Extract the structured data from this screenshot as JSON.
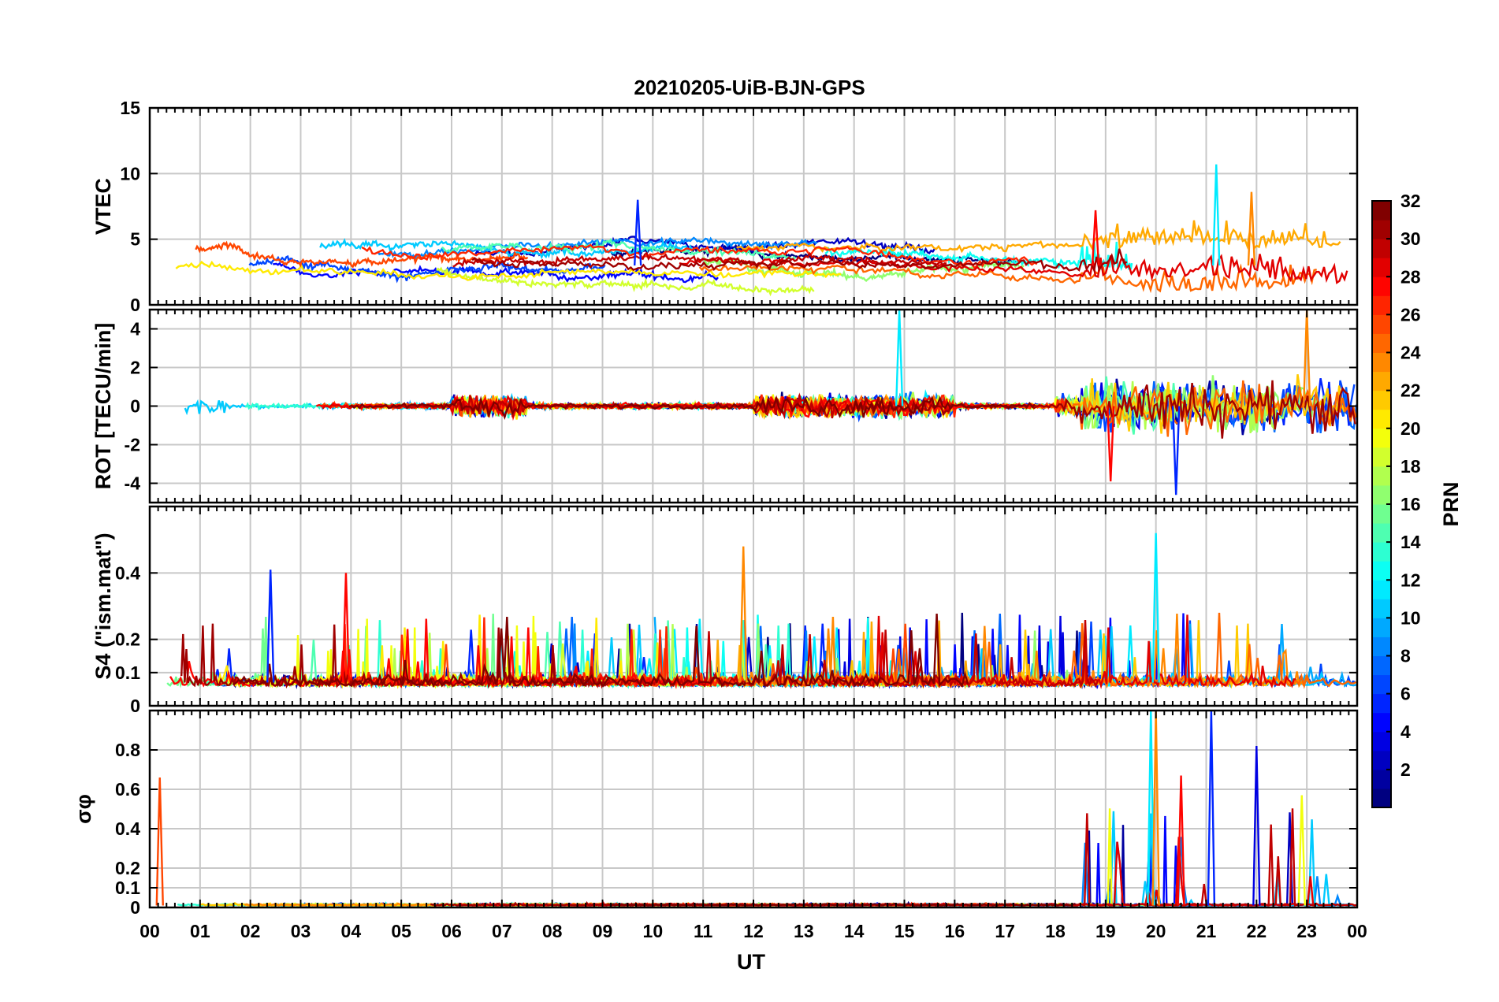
{
  "title": "20210205-UiB-BJN-GPS",
  "xlabel": "UT",
  "x_tick_labels": [
    "00",
    "01",
    "02",
    "03",
    "04",
    "05",
    "06",
    "07",
    "08",
    "09",
    "10",
    "11",
    "12",
    "13",
    "14",
    "15",
    "16",
    "17",
    "18",
    "19",
    "20",
    "21",
    "22",
    "23",
    "00"
  ],
  "colorbar": {
    "label": "PRN",
    "range": [
      1,
      32
    ],
    "ticks": [
      "2",
      "4",
      "6",
      "8",
      "10",
      "12",
      "14",
      "16",
      "18",
      "20",
      "22",
      "24",
      "26",
      "28",
      "30",
      "32"
    ],
    "colormap": "jet"
  },
  "chart_data": [
    {
      "type": "line",
      "ylabel": "VTEC",
      "ylim": [
        0,
        15
      ],
      "yticks": [
        "0",
        "5",
        "10",
        "15"
      ],
      "xlim": [
        0,
        24
      ],
      "grid": true,
      "series_note": "one line per PRN 1-32, colored by PRN",
      "typical_level": [
        2,
        5
      ],
      "peaks": [
        {
          "ut": 21.2,
          "value": 10.7
        },
        {
          "ut": 21.9,
          "value": 8.6
        },
        {
          "ut": 9.7,
          "value": 8.0
        },
        {
          "ut": 18.8,
          "value": 7.2
        }
      ]
    },
    {
      "type": "line",
      "ylabel": "ROT [TECU/min]",
      "ylim": [
        -5,
        5
      ],
      "yticks": [
        "-4",
        "-2",
        "0",
        "2",
        "4"
      ],
      "xlim": [
        0,
        24
      ],
      "grid": true,
      "series_note": "one line per PRN 1-32, colored by PRN",
      "peaks": [
        {
          "ut": 14.9,
          "value": 5.0
        },
        {
          "ut": 23.0,
          "value": 5.0
        },
        {
          "ut": 20.4,
          "value": -4.6
        },
        {
          "ut": 19.1,
          "value": -3.9
        }
      ]
    },
    {
      "type": "line",
      "ylabel": "S4 (\"ism.mat\")",
      "ylim": [
        0,
        0.6
      ],
      "yticks": [
        "0",
        "0.1",
        "0.2",
        "0.4"
      ],
      "xlim": [
        0,
        24
      ],
      "grid": true,
      "series_note": "one line per PRN 1-32, colored by PRN",
      "peaks": [
        {
          "ut": 20.0,
          "value": 0.52
        },
        {
          "ut": 11.8,
          "value": 0.48
        },
        {
          "ut": 2.4,
          "value": 0.41
        },
        {
          "ut": 3.9,
          "value": 0.4
        }
      ]
    },
    {
      "type": "line",
      "ylabel": "σφ",
      "ylim": [
        0,
        1
      ],
      "yticks": [
        "0",
        "0.1",
        "0.2",
        "0.4",
        "0.6",
        "0.8"
      ],
      "xlim": [
        0,
        24
      ],
      "grid": true,
      "series_note": "one line per PRN 1-32, colored by PRN",
      "peaks": [
        {
          "ut": 19.9,
          "value": 1.0
        },
        {
          "ut": 20.0,
          "value": 1.0
        },
        {
          "ut": 21.1,
          "value": 1.0
        },
        {
          "ut": 20.5,
          "value": 0.67
        },
        {
          "ut": 22.0,
          "value": 0.82
        },
        {
          "ut": 22.9,
          "value": 0.57
        },
        {
          "ut": 0.2,
          "value": 0.66
        }
      ]
    }
  ]
}
